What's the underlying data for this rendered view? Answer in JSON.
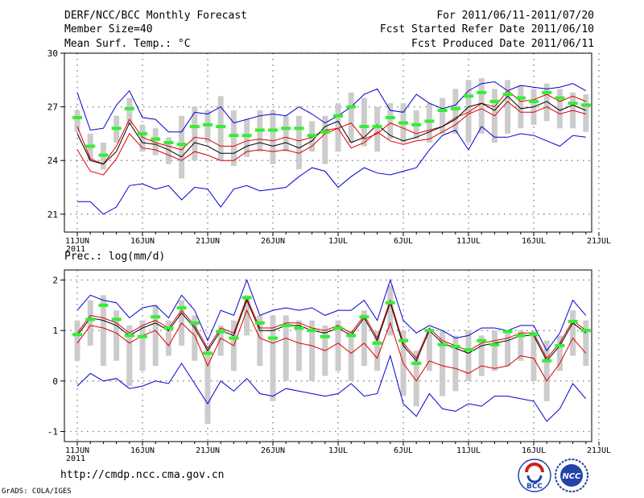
{
  "header": {
    "title": "DERF/NCC/BCC Monthly Forecast",
    "member_size": "Member Size=40",
    "variable1": "Mean Surf. Temp.: °C",
    "period": "For 2011/06/11-2011/07/20",
    "fcst_started": "Fcst Started Refer Date 2011/06/10",
    "fcst_produced": "Fcst Produced Date 2011/06/11"
  },
  "footer": {
    "url": "http://cmdp.ncc.cma.gov.cn",
    "grads": "GrADS: COLA/IGES",
    "logo1_text": "BCC",
    "logo2_text": "NCC"
  },
  "colors": {
    "max_min": "#0000cc",
    "spread": "#dd0000",
    "mean": "#000000",
    "median": "#33ee33",
    "box": "#cccccc",
    "grid": "#7a7a7a"
  },
  "chart_data": [
    {
      "type": "line",
      "title": "Mean Surf. Temp.: °C",
      "x_tick_labels": [
        "11JUN",
        "16JUN",
        "21JUN",
        "26JUN",
        "1JUL",
        "6JUL",
        "11JUL",
        "16JUL",
        "21JUL"
      ],
      "x_year_label": "2011",
      "ylim": [
        20,
        30
      ],
      "y_ticks": [
        21,
        24,
        27,
        30
      ],
      "grid": true,
      "days": 40,
      "series": [
        {
          "name": "max",
          "values": [
            27.8,
            25.7,
            25.8,
            27.1,
            27.9,
            26.4,
            26.3,
            25.6,
            25.6,
            26.7,
            26.6,
            27.0,
            26.1,
            26.3,
            26.5,
            26.6,
            26.5,
            27.0,
            26.6,
            26.1,
            26.5,
            27.0,
            27.7,
            28.0,
            26.8,
            26.7,
            27.7,
            27.2,
            26.9,
            27.1,
            27.9,
            28.3,
            28.4,
            27.9,
            28.2,
            28.1,
            28.0,
            28.1,
            28.3,
            27.9
          ]
        },
        {
          "name": "upper",
          "values": [
            25.9,
            24.1,
            23.8,
            24.8,
            26.3,
            25.3,
            25.0,
            24.8,
            24.6,
            25.3,
            25.2,
            24.8,
            24.8,
            25.1,
            25.2,
            25.1,
            25.3,
            25.1,
            25.3,
            25.7,
            25.8,
            26.1,
            25.2,
            25.5,
            26.1,
            25.8,
            25.5,
            25.7,
            25.9,
            26.4,
            26.7,
            27.2,
            27.0,
            27.9,
            27.3,
            27.4,
            27.7,
            27.3,
            27.6,
            27.3
          ]
        },
        {
          "name": "mean",
          "values": [
            25.5,
            24.0,
            23.8,
            24.5,
            26.1,
            25.0,
            24.9,
            24.6,
            24.2,
            25.0,
            24.8,
            24.4,
            24.4,
            24.8,
            25.0,
            24.8,
            25.0,
            24.7,
            25.1,
            25.9,
            26.2,
            25.0,
            25.3,
            26.0,
            25.4,
            25.1,
            25.3,
            25.6,
            25.9,
            26.3,
            27.0,
            27.2,
            26.8,
            27.6,
            26.9,
            27.0,
            27.3,
            26.8,
            27.1,
            26.8
          ]
        },
        {
          "name": "lower",
          "values": [
            24.6,
            23.4,
            23.2,
            24.1,
            25.5,
            24.7,
            24.6,
            24.3,
            24.0,
            24.5,
            24.3,
            24.0,
            24.0,
            24.5,
            24.6,
            24.5,
            24.6,
            24.4,
            24.8,
            25.5,
            25.8,
            24.7,
            25.0,
            25.6,
            25.1,
            24.9,
            25.1,
            25.2,
            25.6,
            26.0,
            26.6,
            26.9,
            26.5,
            27.3,
            26.7,
            26.7,
            27.0,
            26.6,
            26.8,
            26.6
          ]
        },
        {
          "name": "min",
          "values": [
            21.7,
            21.7,
            21.0,
            21.4,
            22.6,
            22.7,
            22.4,
            22.6,
            21.8,
            22.5,
            22.4,
            21.4,
            22.4,
            22.6,
            22.3,
            22.4,
            22.5,
            23.1,
            23.6,
            23.4,
            22.5,
            23.1,
            23.6,
            23.3,
            23.2,
            23.4,
            23.6,
            24.6,
            25.4,
            25.7,
            24.6,
            25.9,
            25.3,
            25.3,
            25.5,
            25.4,
            25.1,
            24.8,
            25.4,
            25.3
          ]
        },
        {
          "name": "median",
          "values": [
            26.4,
            24.8,
            24.3,
            25.8,
            26.9,
            25.5,
            25.2,
            25.0,
            24.9,
            25.9,
            26.0,
            25.9,
            25.4,
            25.4,
            25.7,
            25.7,
            25.8,
            25.8,
            25.4,
            25.6,
            26.5,
            27.0,
            25.9,
            25.9,
            26.4,
            26.1,
            26.0,
            26.2,
            26.8,
            26.9,
            27.6,
            27.8,
            27.3,
            27.7,
            27.5,
            27.3,
            27.8,
            27.5,
            27.2,
            27.1
          ]
        }
      ],
      "box_ranges": [
        [
          25.6,
          26.8
        ],
        [
          24.0,
          25.5
        ],
        [
          23.5,
          25.0
        ],
        [
          25.0,
          26.5
        ],
        [
          26.0,
          27.5
        ],
        [
          24.5,
          26.0
        ],
        [
          24.3,
          25.8
        ],
        [
          23.8,
          25.3
        ],
        [
          23.0,
          26.5
        ],
        [
          24.0,
          27.0
        ],
        [
          25.0,
          26.8
        ],
        [
          24.0,
          27.6
        ],
        [
          23.7,
          26.8
        ],
        [
          24.2,
          26.3
        ],
        [
          24.5,
          26.8
        ],
        [
          23.8,
          26.8
        ],
        [
          24.5,
          26.5
        ],
        [
          23.5,
          26.5
        ],
        [
          24.5,
          26.2
        ],
        [
          23.8,
          26.5
        ],
        [
          24.5,
          27.2
        ],
        [
          25.0,
          27.8
        ],
        [
          24.8,
          27.5
        ],
        [
          24.5,
          27.0
        ],
        [
          25.2,
          27.2
        ],
        [
          25.0,
          27.2
        ],
        [
          25.2,
          26.8
        ],
        [
          25.0,
          27.2
        ],
        [
          25.5,
          27.5
        ],
        [
          25.5,
          28.0
        ],
        [
          25.0,
          28.5
        ],
        [
          25.5,
          28.6
        ],
        [
          25.0,
          28.0
        ],
        [
          25.5,
          28.5
        ],
        [
          25.8,
          28.2
        ],
        [
          26.0,
          28.0
        ],
        [
          26.2,
          28.3
        ],
        [
          25.8,
          28.0
        ],
        [
          25.8,
          27.8
        ],
        [
          25.6,
          27.7
        ]
      ]
    },
    {
      "type": "line",
      "title": "Prec.: log(mm/d)",
      "x_tick_labels": [
        "11JUN",
        "16JUN",
        "21JUN",
        "26JUN",
        "1JUL",
        "6JUL",
        "11JUL",
        "16JUL",
        "21JUL"
      ],
      "x_year_label": "2011",
      "ylim": [
        -1.2,
        2.2
      ],
      "y_ticks": [
        -1,
        0,
        1,
        2
      ],
      "grid": true,
      "days": 40,
      "series": [
        {
          "name": "max",
          "values": [
            1.4,
            1.7,
            1.6,
            1.55,
            1.25,
            1.45,
            1.5,
            1.25,
            1.7,
            1.4,
            0.8,
            1.4,
            1.3,
            2.0,
            1.3,
            1.4,
            1.45,
            1.4,
            1.45,
            1.3,
            1.4,
            1.4,
            1.6,
            1.2,
            2.0,
            1.2,
            0.95,
            1.1,
            1.0,
            0.85,
            0.9,
            1.05,
            1.05,
            1.0,
            1.1,
            1.1,
            0.6,
            0.95,
            1.6,
            1.3
          ]
        },
        {
          "name": "upper",
          "values": [
            0.95,
            1.3,
            1.25,
            1.15,
            0.95,
            1.1,
            1.2,
            1.05,
            1.4,
            1.1,
            0.65,
            1.05,
            0.95,
            1.65,
            1.05,
            1.05,
            1.15,
            1.15,
            1.05,
            1.0,
            1.1,
            0.95,
            1.3,
            0.85,
            1.6,
            0.75,
            0.45,
            1.05,
            0.8,
            0.7,
            0.6,
            0.75,
            0.8,
            0.85,
            0.95,
            0.95,
            0.45,
            0.75,
            1.2,
            1.0
          ]
        },
        {
          "name": "mean",
          "values": [
            0.9,
            1.25,
            1.2,
            1.1,
            0.9,
            1.05,
            1.15,
            1.0,
            1.35,
            1.05,
            0.6,
            1.0,
            0.9,
            1.6,
            1.0,
            1.0,
            1.1,
            1.1,
            1.0,
            0.95,
            1.05,
            0.9,
            1.25,
            0.8,
            1.55,
            0.7,
            0.4,
            1.0,
            0.75,
            0.65,
            0.55,
            0.7,
            0.75,
            0.8,
            0.9,
            0.9,
            0.4,
            0.7,
            1.15,
            0.95
          ]
        },
        {
          "name": "lower",
          "values": [
            0.75,
            1.1,
            1.05,
            0.95,
            0.75,
            0.9,
            1.0,
            0.7,
            1.15,
            0.9,
            0.3,
            0.85,
            0.7,
            1.4,
            0.85,
            0.75,
            0.85,
            0.75,
            0.7,
            0.6,
            0.75,
            0.55,
            0.75,
            0.45,
            1.15,
            0.35,
            0.0,
            0.4,
            0.3,
            0.25,
            0.15,
            0.3,
            0.25,
            0.3,
            0.5,
            0.45,
            0.0,
            0.35,
            0.85,
            0.55
          ]
        },
        {
          "name": "min",
          "values": [
            -0.1,
            0.15,
            0.0,
            0.05,
            -0.15,
            -0.1,
            0.0,
            -0.05,
            0.35,
            -0.05,
            -0.45,
            0.0,
            -0.2,
            0.05,
            -0.25,
            -0.3,
            -0.15,
            -0.2,
            -0.25,
            -0.3,
            -0.25,
            -0.05,
            -0.3,
            -0.25,
            0.5,
            -0.45,
            -0.7,
            -0.25,
            -0.55,
            -0.6,
            -0.45,
            -0.5,
            -0.3,
            -0.3,
            -0.35,
            -0.4,
            -0.8,
            -0.55,
            -0.05,
            -0.35
          ]
        },
        {
          "name": "median",
          "values": [
            0.92,
            1.22,
            1.5,
            1.22,
            0.9,
            0.88,
            1.27,
            1.05,
            1.45,
            1.15,
            0.55,
            0.98,
            0.85,
            1.65,
            1.15,
            0.85,
            1.1,
            1.05,
            1.0,
            0.88,
            1.05,
            0.9,
            1.27,
            0.75,
            1.55,
            0.8,
            0.35,
            1.0,
            0.72,
            0.68,
            0.62,
            0.8,
            0.72,
            0.98,
            0.9,
            0.92,
            0.4,
            0.7,
            1.18,
            1.0
          ]
        }
      ],
      "box_ranges": [
        [
          0.4,
          1.2
        ],
        [
          0.7,
          1.6
        ],
        [
          0.3,
          1.7
        ],
        [
          0.4,
          1.4
        ],
        [
          -0.1,
          1.1
        ],
        [
          0.2,
          1.2
        ],
        [
          0.3,
          1.5
        ],
        [
          0.5,
          1.2
        ],
        [
          0.7,
          1.6
        ],
        [
          0.4,
          1.3
        ],
        [
          -0.85,
          0.7
        ],
        [
          0.5,
          1.1
        ],
        [
          0.2,
          1.2
        ],
        [
          0.9,
          1.7
        ],
        [
          0.3,
          1.3
        ],
        [
          -0.4,
          1.3
        ],
        [
          0.0,
          1.3
        ],
        [
          0.2,
          1.2
        ],
        [
          0.0,
          1.2
        ],
        [
          0.1,
          1.1
        ],
        [
          0.2,
          1.2
        ],
        [
          0.0,
          1.0
        ],
        [
          0.3,
          1.4
        ],
        [
          0.2,
          1.0
        ],
        [
          0.9,
          1.9
        ],
        [
          -0.3,
          1.0
        ],
        [
          -0.5,
          0.6
        ],
        [
          0.2,
          1.0
        ],
        [
          -0.3,
          1.0
        ],
        [
          -0.2,
          0.9
        ],
        [
          0.0,
          1.0
        ],
        [
          0.1,
          0.9
        ],
        [
          0.2,
          1.0
        ],
        [
          0.3,
          1.0
        ],
        [
          0.4,
          1.0
        ],
        [
          0.0,
          1.0
        ],
        [
          -0.4,
          0.8
        ],
        [
          0.2,
          0.9
        ],
        [
          0.5,
          1.4
        ],
        [
          0.3,
          1.2
        ]
      ]
    }
  ]
}
